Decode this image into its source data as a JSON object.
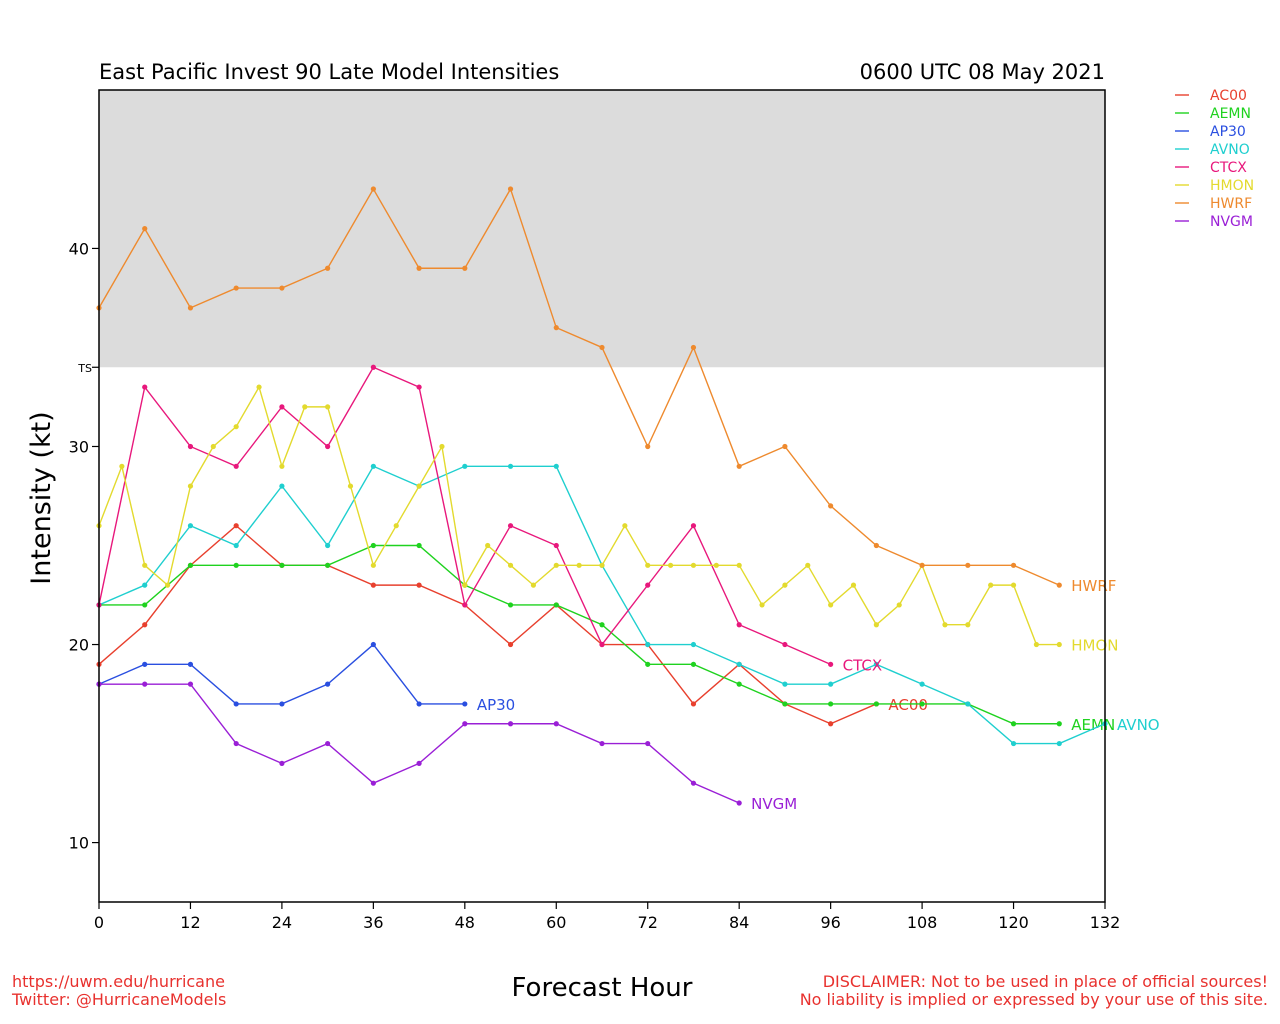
{
  "title_left": "East Pacific Invest 90 Late Model Intensities",
  "title_right": "0600 UTC 08 May 2021",
  "footer": {
    "url": "https://uwm.edu/hurricane",
    "twitter": "Twitter: @HurricaneModels",
    "disclaimer_1": "DISCLAIMER: Not to be used in place of official sources!",
    "disclaimer_2": "No liability is implied or expressed by your use of this site."
  },
  "chart_data": {
    "type": "line",
    "title": "East Pacific Invest 90 Late Model Intensities",
    "subtitle": "0600 UTC 08 May 2021",
    "xlabel": "Forecast Hour",
    "ylabel": "Intensity (kt)",
    "xlim": [
      0,
      132
    ],
    "ylim": [
      7,
      48
    ],
    "x_ticks": [
      0,
      12,
      24,
      36,
      48,
      60,
      72,
      84,
      96,
      108,
      120,
      132
    ],
    "y_ticks": [
      10,
      20,
      30,
      40
    ],
    "threshold": {
      "label": "TS",
      "value": 34,
      "shade_color": "#dcdcdc"
    },
    "legend_position": "top-right, outside plot",
    "series": [
      {
        "name": "AC00",
        "color": "#e8402e",
        "x": [
          0,
          6,
          12,
          18,
          24,
          30,
          36,
          42,
          48,
          54,
          60,
          66,
          72,
          78,
          84,
          90,
          96,
          102
        ],
        "y": [
          19,
          21,
          24,
          26,
          24,
          24,
          23,
          23,
          22,
          20,
          22,
          20,
          20,
          17,
          19,
          17,
          16,
          17
        ]
      },
      {
        "name": "AEMN",
        "color": "#1fd21f",
        "x": [
          0,
          6,
          12,
          18,
          24,
          30,
          36,
          42,
          48,
          54,
          60,
          66,
          72,
          78,
          84,
          90,
          96,
          102,
          108,
          114,
          120,
          126
        ],
        "y": [
          22,
          22,
          24,
          24,
          24,
          24,
          25,
          25,
          23,
          22,
          22,
          21,
          19,
          19,
          18,
          17,
          17,
          17,
          17,
          17,
          16,
          16
        ]
      },
      {
        "name": "AP30",
        "color": "#2a4fe0",
        "x": [
          0,
          6,
          12,
          18,
          24,
          30,
          36,
          42,
          48
        ],
        "y": [
          18,
          19,
          19,
          17,
          17,
          18,
          20,
          17,
          17
        ]
      },
      {
        "name": "AVNO",
        "color": "#1fcfcf",
        "x": [
          0,
          6,
          12,
          18,
          24,
          30,
          36,
          42,
          48,
          54,
          60,
          66,
          72,
          78,
          84,
          90,
          96,
          102,
          108,
          114,
          120,
          126,
          132
        ],
        "y": [
          22,
          23,
          26,
          25,
          28,
          25,
          29,
          28,
          29,
          29,
          29,
          24,
          20,
          20,
          19,
          18,
          18,
          19,
          18,
          17,
          15,
          15,
          16
        ]
      },
      {
        "name": "CTCX",
        "color": "#e8187c",
        "x": [
          0,
          6,
          12,
          18,
          24,
          30,
          36,
          42,
          48,
          54,
          60,
          66,
          72,
          78,
          84,
          90,
          96
        ],
        "y": [
          22,
          33,
          30,
          29,
          32,
          30,
          34,
          33,
          22,
          26,
          25,
          20,
          23,
          26,
          21,
          20,
          19
        ]
      },
      {
        "name": "HMON",
        "color": "#e3da2e",
        "x": [
          0,
          3,
          6,
          9,
          12,
          15,
          18,
          21,
          24,
          27,
          30,
          33,
          36,
          39,
          42,
          45,
          48,
          51,
          54,
          57,
          60,
          63,
          66,
          69,
          72,
          75,
          78,
          81,
          84,
          87,
          90,
          93,
          96,
          99,
          102,
          105,
          108,
          111,
          114,
          117,
          120,
          123,
          126
        ],
        "y": [
          26,
          29,
          24,
          23,
          28,
          30,
          31,
          33,
          29,
          32,
          32,
          28,
          24,
          26,
          28,
          30,
          23,
          25,
          24,
          23,
          24,
          24,
          24,
          26,
          24,
          24,
          24,
          24,
          24,
          22,
          23,
          24,
          22,
          23,
          21,
          22,
          24,
          21,
          21,
          23,
          23,
          20,
          20
        ]
      },
      {
        "name": "HWRF",
        "color": "#ee8a2e",
        "x": [
          0,
          6,
          12,
          18,
          24,
          30,
          36,
          42,
          48,
          54,
          60,
          66,
          72,
          78,
          84,
          90,
          96,
          102,
          108,
          114,
          120,
          126
        ],
        "y": [
          37,
          41,
          37,
          38,
          38,
          39,
          43,
          39,
          39,
          43,
          36,
          35,
          30,
          35,
          29,
          30,
          27,
          25,
          24,
          24,
          24,
          23
        ]
      },
      {
        "name": "NVGM",
        "color": "#9a1fd6",
        "x": [
          0,
          6,
          12,
          18,
          24,
          30,
          36,
          42,
          48,
          54,
          60,
          66,
          72,
          78,
          84
        ],
        "y": [
          18,
          18,
          18,
          15,
          14,
          15,
          13,
          14,
          16,
          16,
          16,
          15,
          15,
          13,
          12
        ]
      }
    ]
  }
}
